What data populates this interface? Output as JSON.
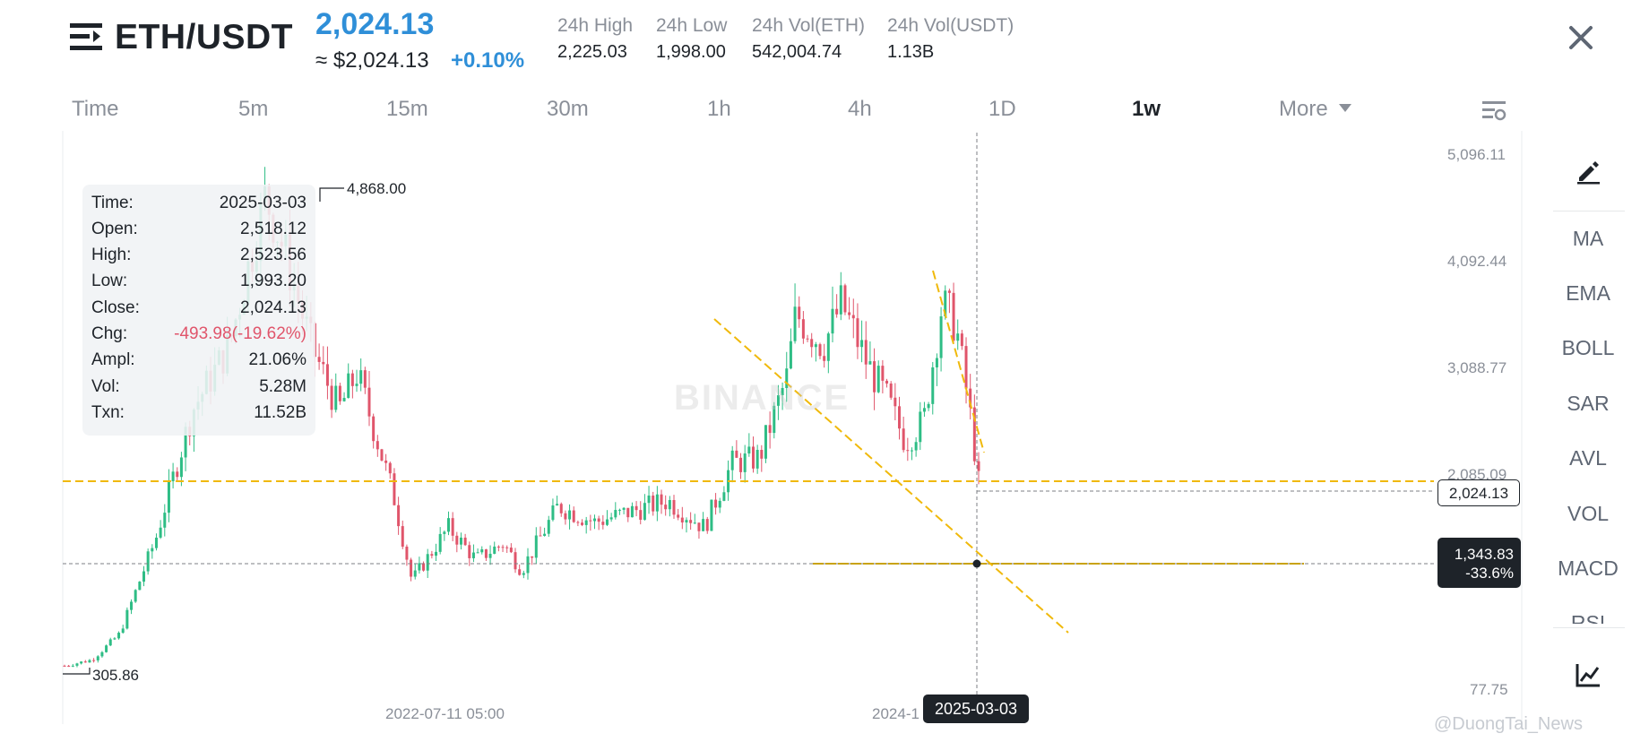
{
  "header": {
    "pair": "ETH/USDT",
    "last_price": "2,024.13",
    "usd_price": "≈ $2,024.13",
    "change_pct": "+0.10%",
    "stats": [
      {
        "label": "24h High",
        "value": "2,225.03"
      },
      {
        "label": "24h Low",
        "value": "1,998.00"
      },
      {
        "label": "24h Vol(ETH)",
        "value": "542,004.74"
      },
      {
        "label": "24h Vol(USDT)",
        "value": "1.13B"
      }
    ]
  },
  "timeframes": {
    "tabs": [
      "Time",
      "5m",
      "15m",
      "30m",
      "1h",
      "4h",
      "1D",
      "1w",
      "More"
    ],
    "active": "1w"
  },
  "info_box": {
    "rows": [
      {
        "key": "Time:",
        "value": "2025-03-03"
      },
      {
        "key": "Open:",
        "value": "2,518.12"
      },
      {
        "key": "High:",
        "value": "2,523.56"
      },
      {
        "key": "Low:",
        "value": "1,993.20"
      },
      {
        "key": "Close:",
        "value": "2,024.13"
      },
      {
        "key": "Chg:",
        "value": "-493.98(-19.62%)"
      },
      {
        "key": "Ampl:",
        "value": "21.06%"
      },
      {
        "key": "Vol:",
        "value": "5.28M"
      },
      {
        "key": "Txn:",
        "value": "11.52B"
      }
    ]
  },
  "price_axis": {
    "labels": [
      "5,096.11",
      "4,092.44",
      "3,088.77",
      "2,085.09",
      "77.75"
    ],
    "current_price": "2,024.13",
    "crosshair_price": "1,343.83",
    "crosshair_pct": "-33.6%"
  },
  "time_axis": {
    "labels": [
      "2022-07-11 05:00",
      "2024-1"
    ],
    "crosshair_date": "2025-03-03"
  },
  "annotations": {
    "high_marker": "4,868.00",
    "low_marker": "305.86"
  },
  "indicators": [
    "MA",
    "EMA",
    "BOLL",
    "SAR",
    "AVL",
    "VOL",
    "MACD",
    "RSI"
  ],
  "watermark": "BINANCE",
  "user_watermark": "@DuongTai_News",
  "colors": {
    "up": "#2ebd85",
    "down": "#e0556b",
    "accent": "#2f8fd8",
    "trendline": "#f0b90b"
  },
  "icons": {
    "menu": "menu-lines-icon",
    "close": "close-icon",
    "settings": "chart-settings-icon",
    "draw": "pencil-draw-icon",
    "chart": "line-chart-icon"
  },
  "chart_data": {
    "type": "candlestick",
    "symbol": "ETH/USDT",
    "interval": "1w",
    "ylim": [
      77.75,
      5096.11
    ],
    "anchors": [
      {
        "date": "2020-12",
        "price": 305.86
      },
      {
        "date": "2021-11",
        "price": 4868.0
      },
      {
        "date": "2022-06",
        "price": 880
      },
      {
        "date": "2024-03",
        "price": 4090
      },
      {
        "date": "2024-12",
        "price": 4100
      },
      {
        "date": "2025-03-03",
        "open": 2518.12,
        "high": 2523.56,
        "low": 1993.2,
        "close": 2024.13
      }
    ],
    "horizontal_lines": [
      2085.09,
      1343.83
    ],
    "current_price": 2024.13
  }
}
